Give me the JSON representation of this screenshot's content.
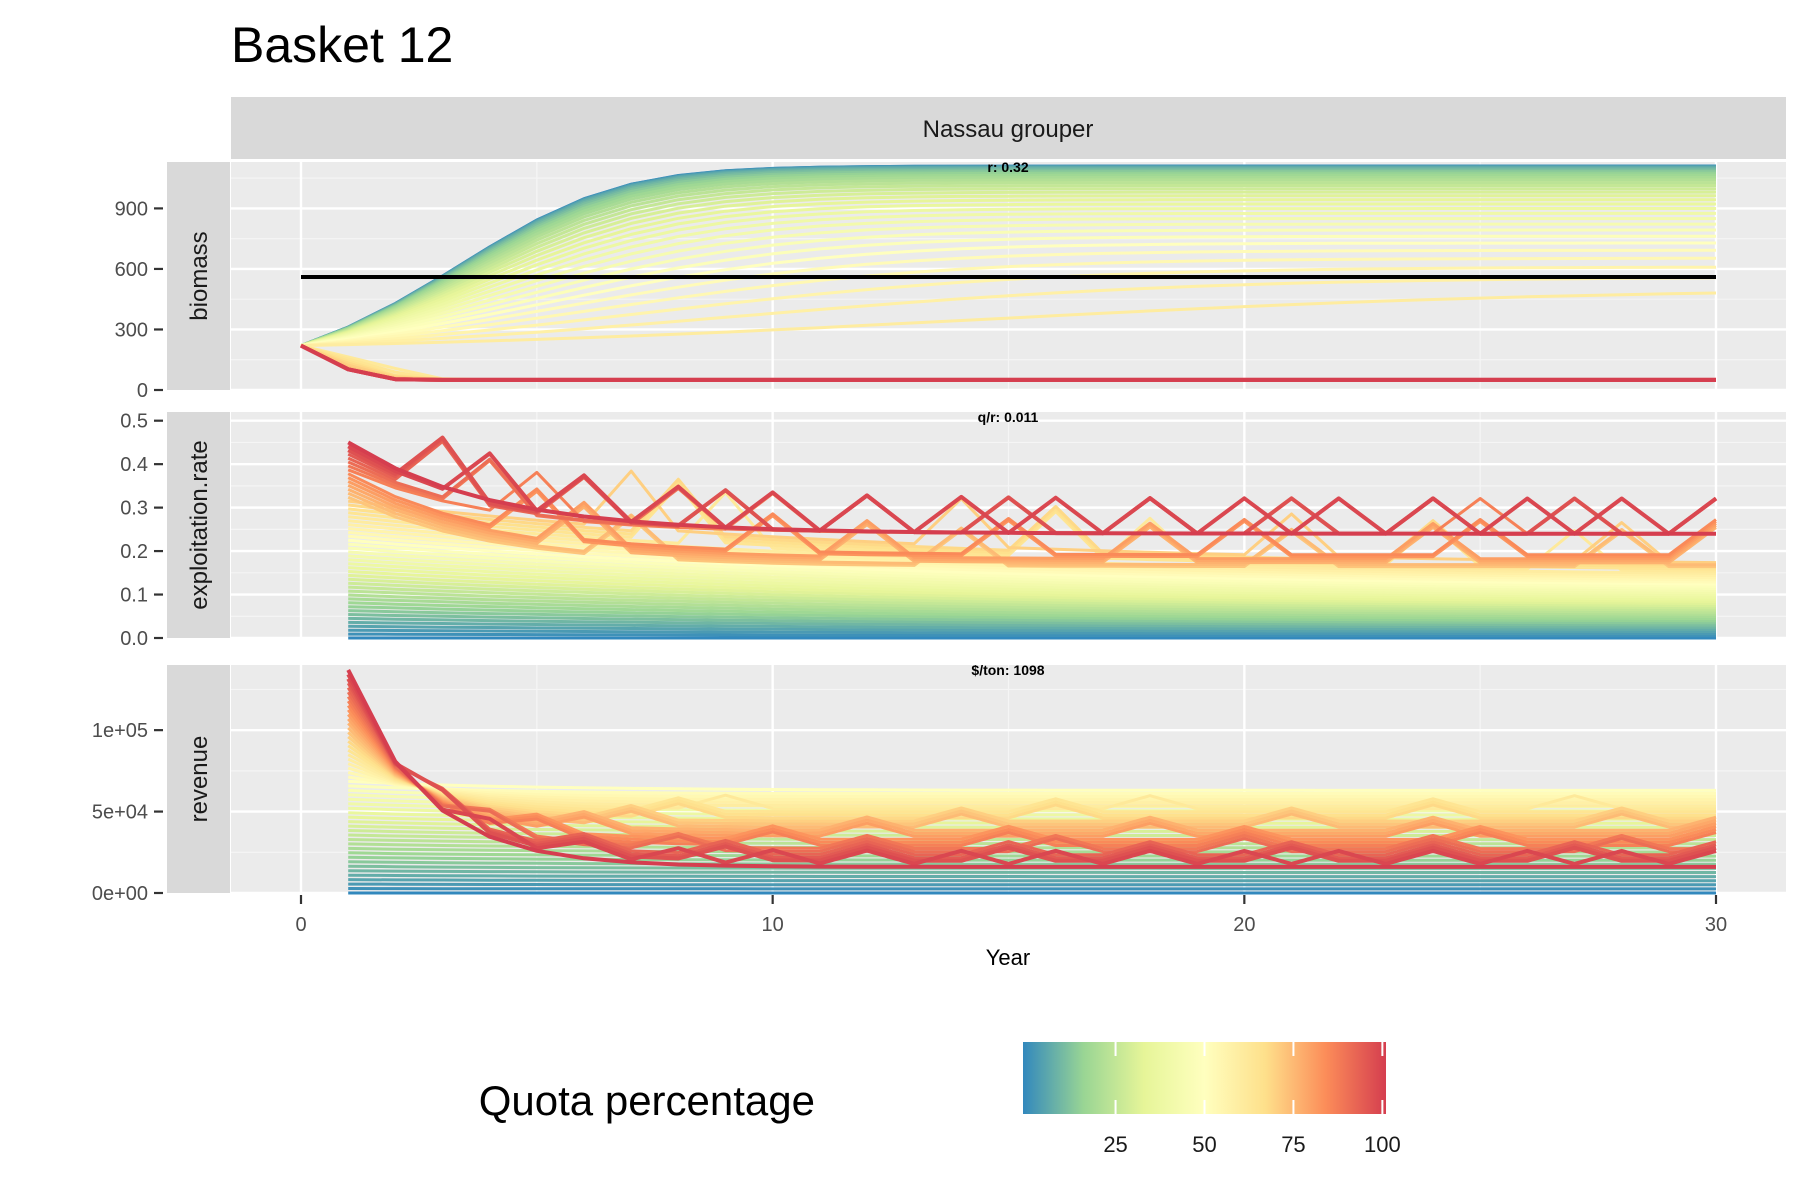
{
  "chart_data": {
    "type": "line",
    "title": "Basket 12",
    "facet_column": "Nassau grouper",
    "xlabel": "Year",
    "xlim": [
      0,
      30
    ],
    "x_ticks": [
      "0",
      "10",
      "20",
      "30"
    ],
    "grid": true,
    "legend": {
      "title": "Quota percentage",
      "position": "bottom",
      "type": "colorbar",
      "range": [
        0,
        100
      ],
      "ticks": [
        "25",
        "50",
        "75",
        "100"
      ],
      "colors": [
        "#3288bd",
        "#99d594",
        "#e6f598",
        "#ffffbf",
        "#fee08b",
        "#fc8d59",
        "#d53e4f"
      ]
    },
    "panels": [
      {
        "id": "biomass",
        "label": "biomass",
        "annotation": "r:  0.32",
        "ylim": [
          0,
          1130
        ],
        "y_ticks": [
          {
            "value": 0,
            "label": "0"
          },
          {
            "value": 300,
            "label": "300"
          },
          {
            "value": 600,
            "label": "600"
          },
          {
            "value": 900,
            "label": "900"
          }
        ],
        "reference_line": 560,
        "initial": 220,
        "quota_0_max": 1110,
        "quota_100_min": 50
      },
      {
        "id": "exploitation",
        "label": "exploitation.rate",
        "annotation": "q/r:  0.011",
        "ylim": [
          0,
          0.52
        ],
        "y_ticks": [
          {
            "value": 0,
            "label": "0.0"
          },
          {
            "value": 0.1,
            "label": "0.1"
          },
          {
            "value": 0.2,
            "label": "0.2"
          },
          {
            "value": 0.3,
            "label": "0.3"
          },
          {
            "value": 0.4,
            "label": "0.4"
          },
          {
            "value": 0.5,
            "label": "0.5"
          }
        ],
        "quota_100_start": 0.45,
        "quota_100_end": 0.24,
        "quota_100_peak": 0.51
      },
      {
        "id": "revenue",
        "label": "revenue",
        "annotation": "$/ton:  1098",
        "ylim": [
          0,
          140000
        ],
        "y_ticks": [
          {
            "value": 0,
            "label": "0e+00"
          },
          {
            "value": 50000,
            "label": "5e+04"
          },
          {
            "value": 100000,
            "label": "1e+05"
          }
        ],
        "quota_100_start": 137000,
        "quota_100_end": 16000,
        "quota_mid_plateau": 63000
      }
    ]
  }
}
